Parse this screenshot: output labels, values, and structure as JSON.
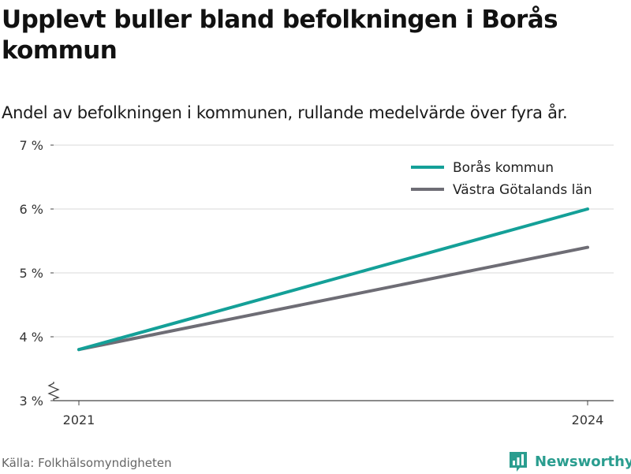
{
  "title": "Upplevt buller bland befolkningen i Borås kommun",
  "subtitle": "Andel av befolkningen i kommunen, rullande medelvärde över fyra år.",
  "source": "Källa: Folkhälsomyndigheten",
  "brand": {
    "name": "Newsworthy",
    "icon": "bar-chart-logo-icon",
    "color": "#2a9d8f"
  },
  "chart_data": {
    "type": "line",
    "x": [
      "2021",
      "2024"
    ],
    "ylim": [
      3,
      7
    ],
    "yticks": [
      3,
      4,
      5,
      6,
      7
    ],
    "ytick_labels": [
      "3 %",
      "4 %",
      "5 %",
      "6 %",
      "7 %"
    ],
    "y_axis_break": true,
    "grid": true,
    "legend_position": "top-right",
    "series": [
      {
        "name": "Borås kommun",
        "color": "#14a098",
        "values": [
          3.8,
          6.0
        ]
      },
      {
        "name": "Västra Götalands län",
        "color": "#6e6d75",
        "values": [
          3.8,
          5.4
        ]
      }
    ]
  }
}
